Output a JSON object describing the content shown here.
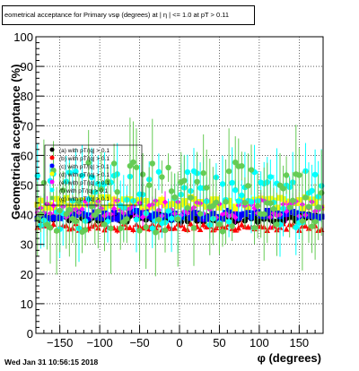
{
  "chart_data": {
    "type": "scatter",
    "title": "eometrical acceptance for Primary vsφ (degrees) at |  η | <= 1.0 at pT > 0.11",
    "xlabel": "φ (degrees)",
    "ylabel": "Geometrical acceptance (%)",
    "xlim": [
      -180,
      180
    ],
    "ylim": [
      0,
      100
    ],
    "xticks": [
      -150,
      -100,
      -50,
      0,
      50,
      100,
      150
    ],
    "yticks": [
      0,
      10,
      20,
      30,
      40,
      50,
      60,
      70,
      80,
      90,
      100
    ],
    "grid": true,
    "legend_position": "left-middle",
    "legend": [
      {
        "label": "(a) with pT/|q| > 0.1",
        "color": "#000000"
      },
      {
        "label": "(b) with pT/|q| > 0.1",
        "color": "#ff0000"
      },
      {
        "label": "(c) with pT/|q| > 0.1",
        "color": "#0000ff"
      },
      {
        "label": "(d) with pT/|q| > 0.1",
        "color": "#ffff00"
      },
      {
        "label": "(e) with pT/|q| > 0.1",
        "color": "#ff00ff"
      },
      {
        "label": "(f) with pT/|q| > 0.1",
        "color": "#00ffff"
      },
      {
        "label": "(g) with pT/|q| > 0.1",
        "color": "#66cc55"
      }
    ],
    "series": [
      {
        "color": "#000000",
        "x_range": [
          -178,
          178
        ],
        "n": 90,
        "mean": 39,
        "spread": 1.5,
        "err": 1.5,
        "marker": "circle"
      },
      {
        "color": "#ff0000",
        "x_range": [
          -178,
          178
        ],
        "n": 90,
        "mean": 36,
        "spread": 1.2,
        "err": 1.2,
        "marker": "triangle"
      },
      {
        "color": "#0000ff",
        "x_range": [
          -178,
          178
        ],
        "n": 90,
        "mean": 40,
        "spread": 1.5,
        "err": 1.5,
        "marker": "square"
      },
      {
        "color": "#ffff00",
        "x_range": [
          -178,
          178
        ],
        "n": 90,
        "mean": 44,
        "spread": 2,
        "err": 2,
        "marker": "square"
      },
      {
        "color": "#ff00ff",
        "x_range": [
          -178,
          178
        ],
        "n": 90,
        "mean": 42,
        "spread": 3,
        "err": 3,
        "marker": "diamond"
      },
      {
        "color": "#00ffff",
        "x_range": [
          -178,
          178
        ],
        "n": 90,
        "mean": 45,
        "spread": 10,
        "err": 9,
        "marker": "circle"
      },
      {
        "color": "#66cc55",
        "x_range": [
          -178,
          178
        ],
        "n": 90,
        "mean": 46,
        "spread": 12,
        "err": 12,
        "marker": "circle"
      }
    ]
  },
  "footer": {
    "timestamp": "Wed Jan 31 10:56:15 2018"
  }
}
